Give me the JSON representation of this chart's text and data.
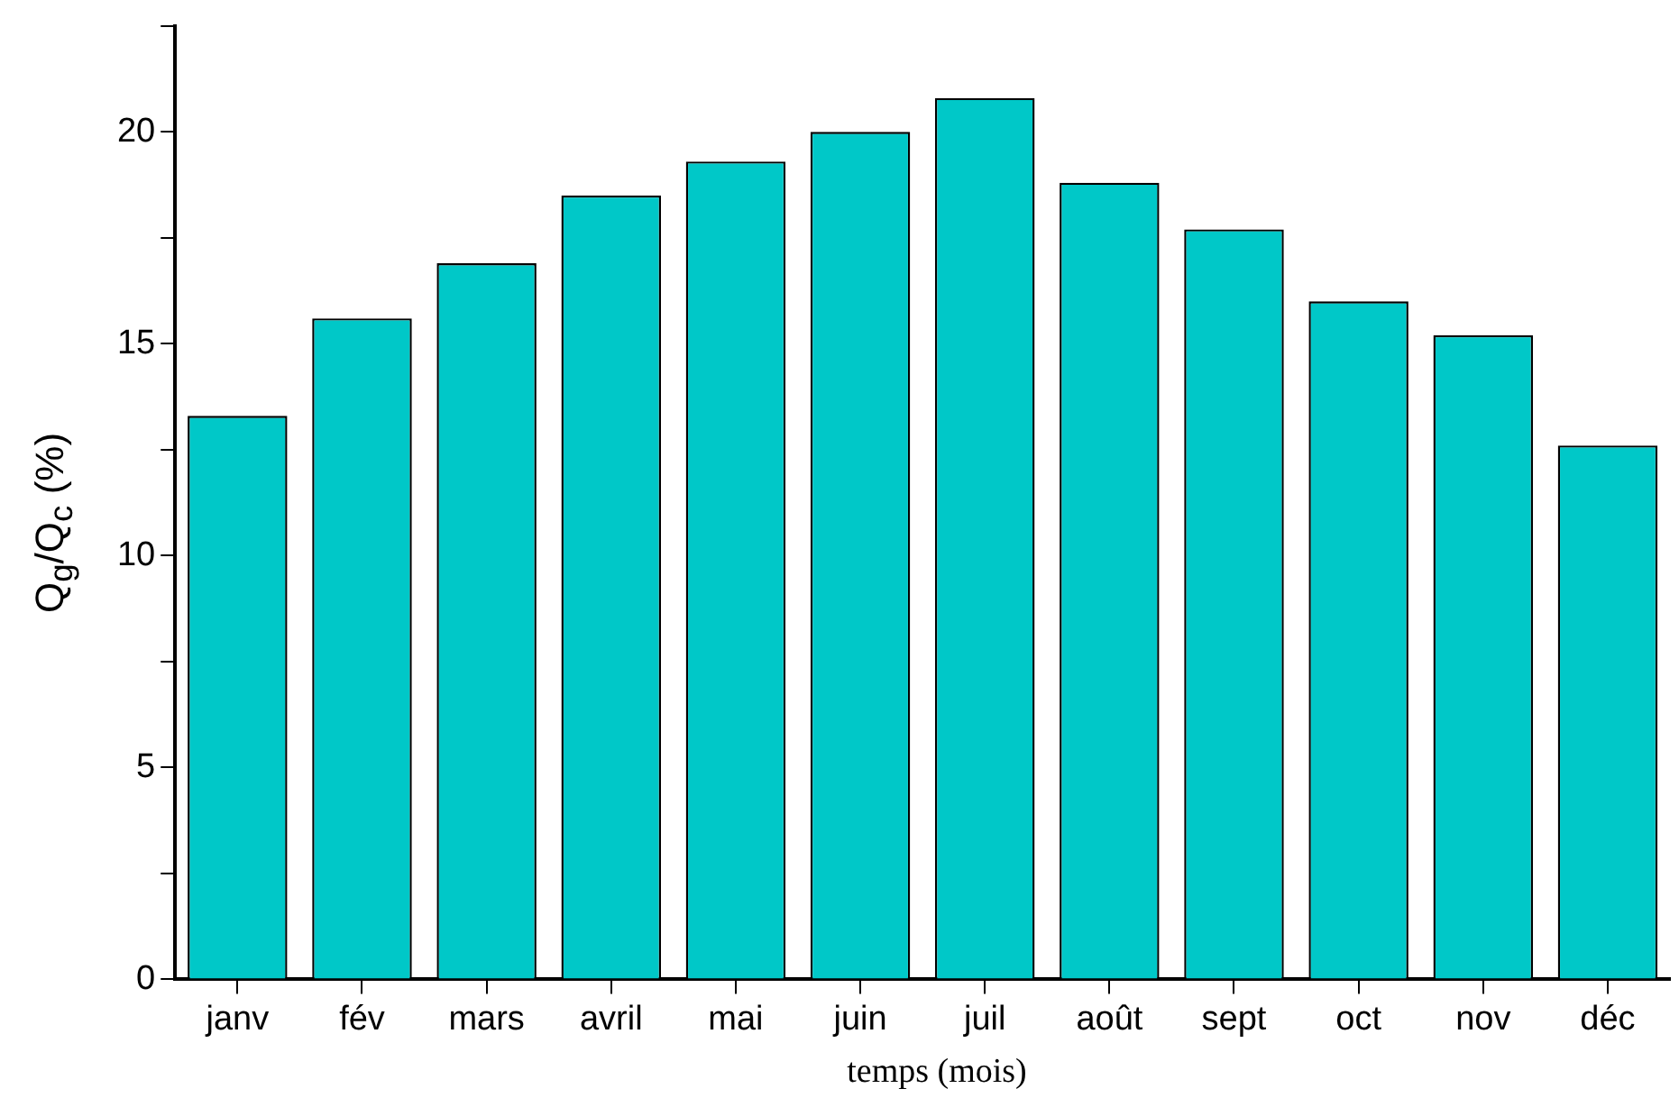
{
  "chart_data": {
    "type": "bar",
    "xlabel": "temps (mois)",
    "ylabel": "Q$_{g}$/Q$_{c}$ (%)",
    "categories": [
      "janv",
      "fév",
      "mars",
      "avril",
      "mai",
      "juin",
      "juil",
      "août",
      "sept",
      "oct",
      "nov",
      "déc"
    ],
    "values": [
      13.3,
      15.6,
      16.9,
      18.5,
      19.3,
      20.0,
      20.8,
      18.8,
      17.7,
      16.0,
      15.2,
      12.6
    ],
    "color": "#00c8c8",
    "ylim": [
      0,
      22.5
    ],
    "yticks": [
      0,
      {
        "value": 2.5,
        "label": null
      },
      5,
      {
        "value": 7.5,
        "label": null
      },
      10,
      {
        "value": 12.5,
        "label": null
      },
      15,
      {
        "value": 17.5,
        "label": null
      },
      20,
      {
        "value": 22.5,
        "label": null
      }
    ],
    "grid": false,
    "legend": false
  }
}
